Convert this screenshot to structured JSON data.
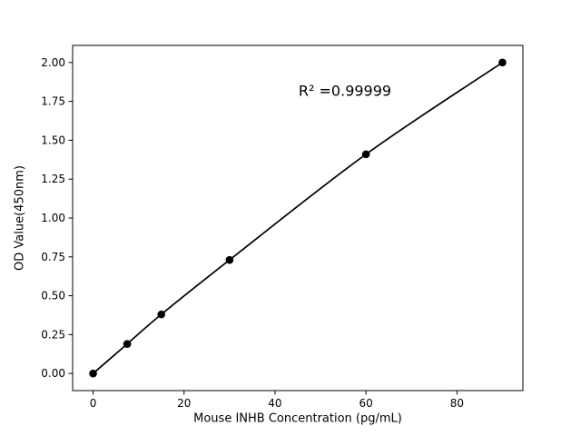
{
  "chart_data": {
    "type": "line",
    "title": "",
    "xlabel": "Mouse INHB Concentration (pg/mL)",
    "ylabel": "OD Value(450nm)",
    "annotation": "R² =0.99999",
    "x": [
      0,
      7.5,
      15,
      30,
      60,
      90
    ],
    "y": [
      0.0,
      0.19,
      0.38,
      0.73,
      1.41,
      2.0
    ],
    "xlim": [
      -4.5,
      94.5
    ],
    "ylim": [
      -0.11,
      2.11
    ],
    "x_tick_values": [
      0,
      20,
      40,
      60,
      80
    ],
    "x_tick_labels": [
      "0",
      "20",
      "40",
      "60",
      "80"
    ],
    "y_tick_values": [
      0,
      0.25,
      0.5,
      0.75,
      1.0,
      1.25,
      1.5,
      1.75,
      2.0
    ],
    "y_tick_labels": [
      "0.00",
      "0.25",
      "0.50",
      "0.75",
      "1.00",
      "1.25",
      "1.50",
      "1.75",
      "2.00"
    ],
    "line_color": "#000000",
    "marker_color": "#000000",
    "background_color": "#ffffff",
    "grid": false,
    "legend": "none"
  }
}
